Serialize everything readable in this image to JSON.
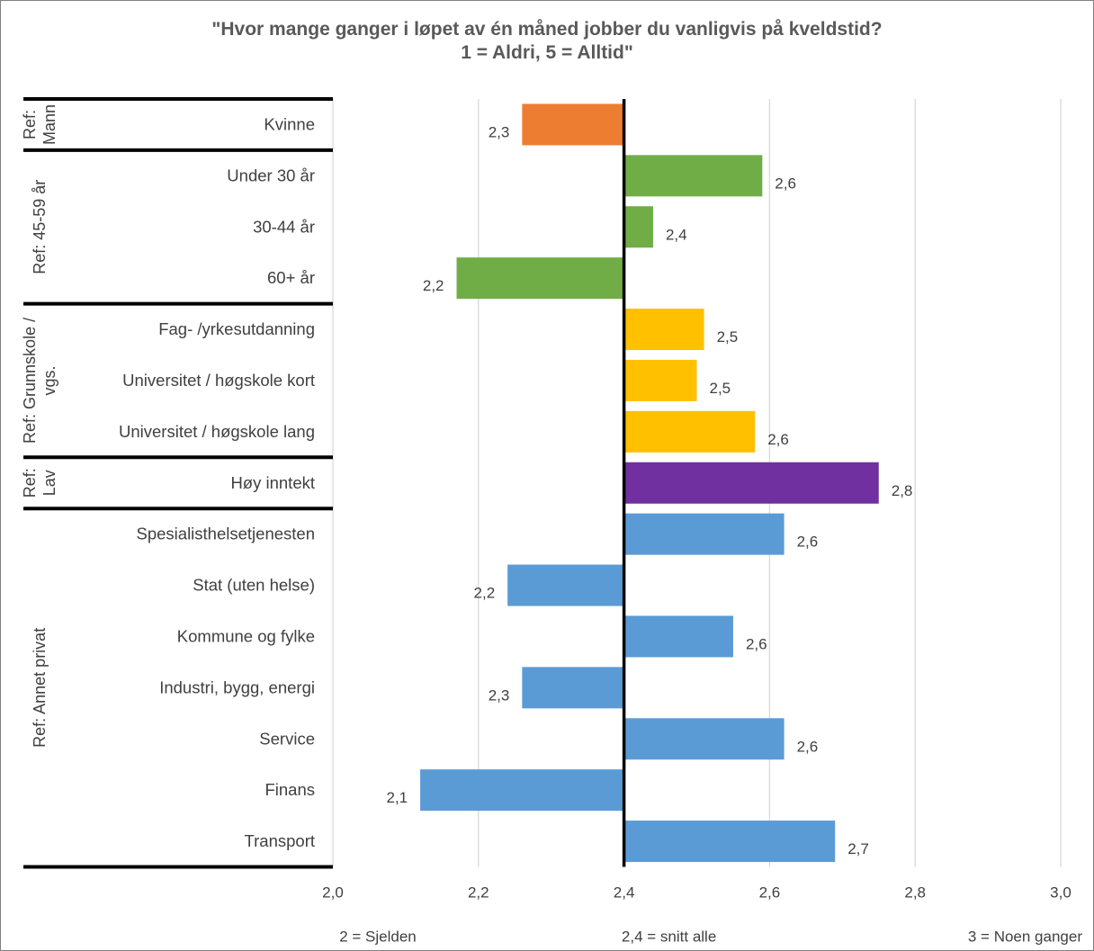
{
  "chart_data": {
    "type": "bar",
    "orientation": "horizontal",
    "title_lines": [
      "\"Hvor mange ganger i løpet av én måned jobber du vanligvis på kveldstid?",
      "1 = Aldri, 5 = Alltid\""
    ],
    "xlim": [
      2.0,
      3.0
    ],
    "xticks": [
      "2,0",
      "2,2",
      "2,4",
      "2,6",
      "2,8",
      "3,0"
    ],
    "xtick_values": [
      2.0,
      2.2,
      2.4,
      2.6,
      2.8,
      3.0
    ],
    "baseline": 2.4,
    "grid": true,
    "bottom_labels": {
      "left": "2 = Sjelden",
      "center": "2,4 = snitt alle",
      "right": "3 = Noen ganger"
    },
    "groups": [
      {
        "label": "Ref: Mann",
        "label_lines": [
          "Ref:",
          "Mann"
        ],
        "color": "#ED7D31",
        "start": 0,
        "count": 1
      },
      {
        "label": "Ref: 45-59 år",
        "label_lines": [
          "Ref: 45-59 år"
        ],
        "color": "#70AD47",
        "start": 1,
        "count": 3
      },
      {
        "label": "Ref: Grunnskole / vgs.",
        "label_lines": [
          "Ref: Grunnskole /",
          "vgs."
        ],
        "color": "#FFC000",
        "start": 4,
        "count": 3
      },
      {
        "label": "Ref: Lav",
        "label_lines": [
          "Ref:",
          "Lav"
        ],
        "color": "#7030A0",
        "start": 7,
        "count": 1
      },
      {
        "label": "Ref: Annet privat",
        "label_lines": [
          "Ref: Annet privat"
        ],
        "color": "#5B9BD5",
        "start": 8,
        "count": 7
      }
    ],
    "categories": [
      "Kvinne",
      "Under 30 år",
      "30-44 år",
      "60+ år",
      "Fag- /yrkesutdanning",
      "Universitet / høgskole kort",
      "Universitet / høgskole lang",
      "Høy inntekt",
      "Spesialisthelsetjenesten",
      "Stat (uten helse)",
      "Kommune og fylke",
      "Industri, bygg, energi",
      "Service",
      "Finans",
      "Transport"
    ],
    "values": [
      2.26,
      2.59,
      2.44,
      2.17,
      2.51,
      2.5,
      2.58,
      2.75,
      2.62,
      2.24,
      2.55,
      2.26,
      2.62,
      2.12,
      2.69
    ],
    "value_labels": [
      "2,3",
      "2,6",
      "2,4",
      "2,2",
      "2,5",
      "2,5",
      "2,6",
      "2,8",
      "2,6",
      "2,2",
      "2,6",
      "2,3",
      "2,6",
      "2,1",
      "2,7"
    ]
  }
}
